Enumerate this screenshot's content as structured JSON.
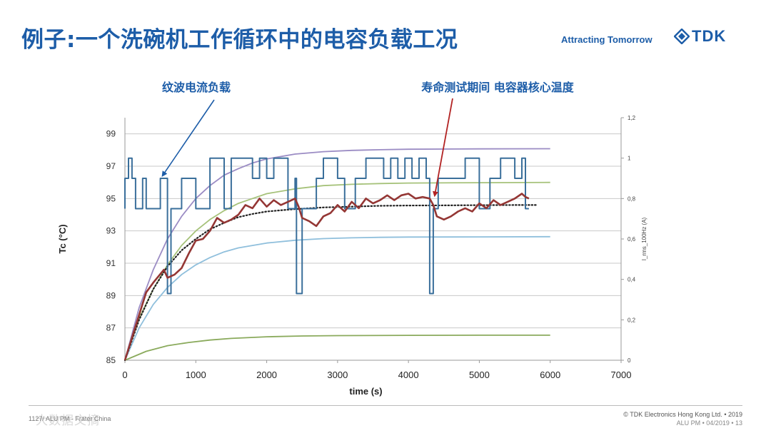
{
  "slide": {
    "title": "例子:一个洗碗机工作循环中的电容负载工况",
    "tagline": "Attracting Tomorrow",
    "logo_text": "TDK",
    "brand_color": "#1d5da8"
  },
  "footer": {
    "left_text": "1127/ ALU PM - Frater China",
    "right_line1": "© TDK Electronics Hong Kong Ltd. • 2019",
    "right_line2": "ALU PM • 04/2019 • 13",
    "watermark": "大数据文摘"
  },
  "chart_data": {
    "type": "line",
    "title": "",
    "xlabel": "time (s)",
    "ylabel": "Tc (°C)",
    "y2label": "I_rms_100Hz (A)",
    "xlim": [
      0,
      7000
    ],
    "ylim": [
      85,
      100
    ],
    "y2lim": [
      0,
      1.2
    ],
    "xticks": [
      0,
      1000,
      2000,
      3000,
      4000,
      5000,
      6000,
      7000
    ],
    "yticks": [
      85,
      87,
      89,
      91,
      93,
      95,
      97,
      99
    ],
    "y2ticks": [
      0,
      0.2,
      0.4,
      0.6,
      0.8,
      1,
      1.2
    ],
    "y2ticklabels": [
      "0",
      "0,2",
      "0,4",
      "0,6",
      "0,8",
      "1",
      "1,2"
    ],
    "grid": true,
    "annotations": [
      {
        "text": "纹波电流负载",
        "target": [
          500,
          96.5
        ],
        "color": "#1d5da8"
      },
      {
        "text": "寿命测试期间 电容器核心温度",
        "target": [
          4350,
          95
        ],
        "color": "#b22222"
      }
    ],
    "series": [
      {
        "name": "exp-98",
        "axis": "left",
        "color": "#9b8cc4",
        "style": "solid",
        "x": [
          0,
          200,
          400,
          600,
          800,
          1000,
          1200,
          1400,
          1600,
          1800,
          2000,
          2400,
          2800,
          3200,
          3600,
          4000,
          5000,
          6000
        ],
        "y": [
          85,
          88.25,
          90.6,
          92.5,
          93.9,
          95.0,
          95.8,
          96.45,
          96.85,
          97.2,
          97.45,
          97.75,
          97.9,
          97.98,
          98.02,
          98.05,
          98.07,
          98.08
        ]
      },
      {
        "name": "exp-96",
        "axis": "left",
        "color": "#a6c27a",
        "style": "solid",
        "x": [
          0,
          200,
          400,
          600,
          800,
          1000,
          1200,
          1400,
          1600,
          1800,
          2000,
          2400,
          2800,
          3200,
          3600,
          4000,
          5000,
          6000
        ],
        "y": [
          85,
          87.6,
          89.4,
          90.9,
          92.1,
          93.0,
          93.7,
          94.25,
          94.7,
          95.0,
          95.3,
          95.6,
          95.8,
          95.88,
          95.93,
          95.96,
          95.98,
          96.0
        ]
      },
      {
        "name": "exp-92.6",
        "axis": "left",
        "color": "#8fbfdc",
        "style": "solid",
        "x": [
          0,
          200,
          400,
          600,
          800,
          1000,
          1200,
          1400,
          1600,
          1800,
          2000,
          2400,
          2800,
          3200,
          3600,
          4000,
          5000,
          6000
        ],
        "y": [
          85,
          87.0,
          88.45,
          89.5,
          90.3,
          90.9,
          91.35,
          91.7,
          91.95,
          92.1,
          92.25,
          92.42,
          92.52,
          92.57,
          92.6,
          92.62,
          92.63,
          92.64
        ]
      },
      {
        "name": "exp-86.5",
        "axis": "left",
        "color": "#8aaa5c",
        "style": "solid",
        "x": [
          0,
          300,
          600,
          900,
          1200,
          1500,
          2000,
          2500,
          3000,
          4000,
          5000,
          6000
        ],
        "y": [
          85,
          85.55,
          85.9,
          86.1,
          86.25,
          86.35,
          86.45,
          86.5,
          86.52,
          86.54,
          86.55,
          86.55
        ]
      },
      {
        "name": "average-fit",
        "axis": "left",
        "color": "#222222",
        "style": "dotted",
        "x": [
          0,
          200,
          400,
          600,
          800,
          1000,
          1200,
          1400,
          1600,
          1800,
          2000,
          2400,
          2800,
          3200,
          3600,
          4000,
          4500,
          5000,
          5500,
          5800
        ],
        "y": [
          85,
          87.5,
          89.4,
          90.8,
          91.8,
          92.5,
          93.1,
          93.5,
          93.85,
          94.05,
          94.2,
          94.35,
          94.45,
          94.5,
          94.55,
          94.57,
          94.58,
          94.59,
          94.6,
          94.6
        ]
      },
      {
        "name": "ripple-current",
        "axis": "right",
        "color": "#3a6f9b",
        "style": "step",
        "x": [
          0,
          0,
          50,
          50,
          100,
          100,
          150,
          150,
          250,
          250,
          300,
          300,
          500,
          500,
          600,
          600,
          650,
          650,
          650,
          800,
          800,
          1000,
          1000,
          1200,
          1200,
          1400,
          1400,
          1500,
          1500,
          1800,
          1800,
          1900,
          1900,
          2000,
          2000,
          2100,
          2100,
          2300,
          2300,
          2400,
          2400,
          2420,
          2420,
          2500,
          2500,
          2520,
          2520,
          2600,
          2600,
          2700,
          2700,
          2800,
          2800,
          3000,
          3000,
          3100,
          3100,
          3250,
          3250,
          3400,
          3400,
          3650,
          3650,
          3750,
          3750,
          3850,
          3850,
          3950,
          3950,
          4050,
          4050,
          4150,
          4150,
          4250,
          4250,
          4300,
          4300,
          4350,
          4350,
          4420,
          4420,
          4600,
          4600,
          4800,
          4800,
          5000,
          5000,
          5150,
          5150,
          5300,
          5300,
          5500,
          5500,
          5600,
          5600,
          5650,
          5650,
          5700
        ],
        "y": [
          0.75,
          0.9,
          0.9,
          1.0,
          1.0,
          0.9,
          0.9,
          0.75,
          0.75,
          0.9,
          0.9,
          0.75,
          0.75,
          0.9,
          0.9,
          0.33,
          0.33,
          0.33,
          0.75,
          0.75,
          0.9,
          0.9,
          0.75,
          0.75,
          1.0,
          1.0,
          0.75,
          0.75,
          1.0,
          1.0,
          0.9,
          0.9,
          1.0,
          1.0,
          0.9,
          0.9,
          1.0,
          1.0,
          0.75,
          0.75,
          0.9,
          0.9,
          0.33,
          0.33,
          0.75,
          0.75,
          0.75,
          0.75,
          0.75,
          0.75,
          0.9,
          0.9,
          1.0,
          1.0,
          0.9,
          0.9,
          0.75,
          0.75,
          0.9,
          0.9,
          1.0,
          1.0,
          0.9,
          0.9,
          1.0,
          1.0,
          0.9,
          0.9,
          1.0,
          1.0,
          0.9,
          0.9,
          1.0,
          1.0,
          0.9,
          0.9,
          0.33,
          0.33,
          0.75,
          0.75,
          0.9,
          0.9,
          0.9,
          0.9,
          1.0,
          1.0,
          0.75,
          0.75,
          0.9,
          0.9,
          1.0,
          1.0,
          0.9,
          0.9,
          1.0,
          1.0,
          0.75,
          0.75
        ]
      },
      {
        "name": "capacitor-core-temperature",
        "axis": "left",
        "color": "#943634",
        "style": "solid",
        "x": [
          0,
          250,
          300,
          350,
          400,
          550,
          600,
          700,
          800,
          900,
          1000,
          1100,
          1200,
          1300,
          1400,
          1500,
          1600,
          1700,
          1800,
          1900,
          2000,
          2100,
          2200,
          2300,
          2400,
          2450,
          2500,
          2600,
          2700,
          2800,
          2900,
          3000,
          3100,
          3200,
          3300,
          3400,
          3500,
          3600,
          3700,
          3800,
          3900,
          4000,
          4100,
          4200,
          4300,
          4350,
          4400,
          4500,
          4600,
          4700,
          4800,
          4900,
          5000,
          5100,
          5200,
          5300,
          5400,
          5500,
          5600,
          5650,
          5700
        ],
        "y": [
          85,
          88.5,
          89.2,
          89.5,
          89.8,
          90.6,
          90.1,
          90.3,
          90.7,
          91.6,
          92.4,
          92.5,
          93.0,
          93.8,
          93.5,
          93.7,
          94.0,
          94.6,
          94.4,
          95.0,
          94.5,
          94.9,
          94.6,
          94.8,
          95.0,
          94.5,
          93.8,
          93.6,
          93.3,
          93.9,
          94.1,
          94.6,
          94.2,
          94.8,
          94.4,
          95.0,
          94.7,
          94.9,
          95.2,
          94.9,
          95.2,
          95.3,
          95.0,
          95.1,
          95.0,
          94.6,
          93.9,
          93.7,
          93.9,
          94.2,
          94.4,
          94.2,
          94.7,
          94.4,
          94.9,
          94.6,
          94.8,
          95.0,
          95.3,
          95.1,
          95.0
        ]
      }
    ]
  }
}
